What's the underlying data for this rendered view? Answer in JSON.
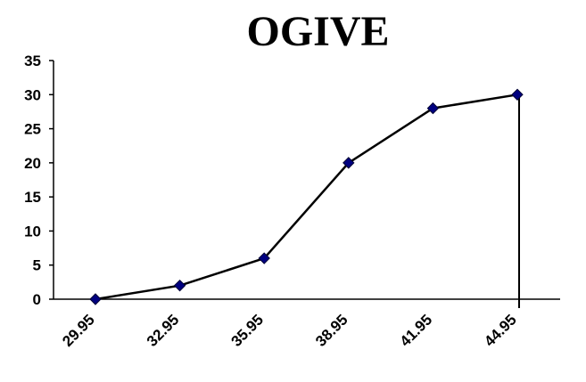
{
  "chart_data": {
    "type": "line",
    "title": "OGIVE",
    "xlabel": "",
    "ylabel": "",
    "x": [
      "29.95",
      "32.95",
      "35.95",
      "38.95",
      "41.95",
      "44.95"
    ],
    "series": [
      {
        "values": [
          0,
          2,
          6,
          20,
          28,
          30
        ]
      }
    ],
    "ylim": [
      0,
      35
    ],
    "yticks": [
      0,
      5,
      10,
      15,
      20,
      25,
      30,
      35
    ],
    "grid": false,
    "legend": "none",
    "line_color": "#000000",
    "marker_color": "#000080",
    "marker": "diamond",
    "drop_line_at_last_point": true
  }
}
